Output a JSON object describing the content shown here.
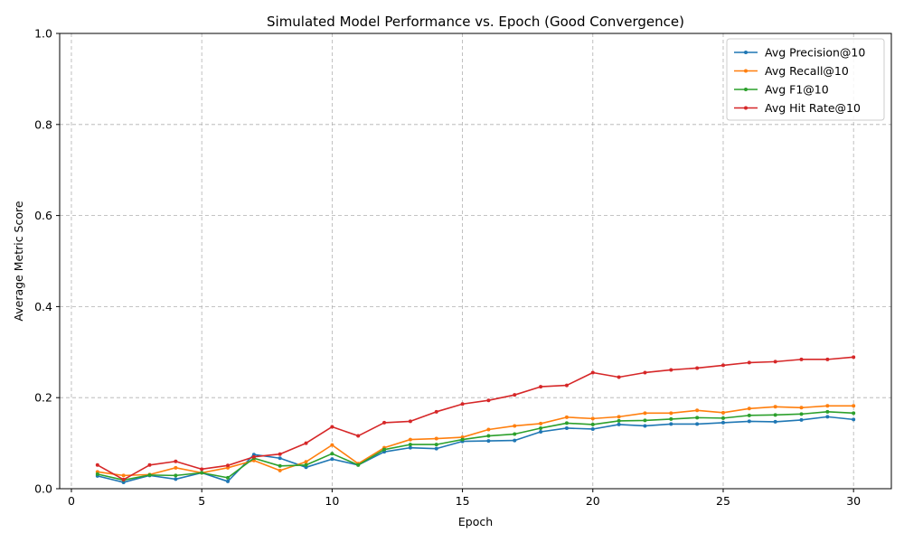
{
  "chart_data": {
    "type": "line",
    "title": "Simulated Model Performance vs. Epoch (Good Convergence)",
    "xlabel": "Epoch",
    "ylabel": "Average Metric Score",
    "xlim": [
      -0.45,
      31.45
    ],
    "ylim": [
      0,
      1.0
    ],
    "x_ticks": [
      0,
      5,
      10,
      15,
      20,
      25,
      30
    ],
    "y_ticks": [
      0.0,
      0.2,
      0.4,
      0.6,
      0.8,
      1.0
    ],
    "x_tick_labels": [
      "0",
      "5",
      "10",
      "15",
      "20",
      "25",
      "30"
    ],
    "y_tick_labels": [
      "0.0",
      "0.2",
      "0.4",
      "0.6",
      "0.8",
      "1.0"
    ],
    "grid": true,
    "legend_position": "top-right",
    "x": [
      1,
      2,
      3,
      4,
      5,
      6,
      7,
      8,
      9,
      10,
      11,
      12,
      13,
      14,
      15,
      16,
      17,
      18,
      19,
      20,
      21,
      22,
      23,
      24,
      25,
      26,
      27,
      28,
      29,
      30
    ],
    "series": [
      {
        "name": "Avg Precision@10",
        "color": "#1f77b4",
        "values": [
          0.028,
          0.014,
          0.029,
          0.021,
          0.035,
          0.016,
          0.075,
          0.067,
          0.047,
          0.065,
          0.052,
          0.081,
          0.09,
          0.088,
          0.104,
          0.105,
          0.106,
          0.125,
          0.133,
          0.131,
          0.141,
          0.138,
          0.142,
          0.142,
          0.145,
          0.148,
          0.147,
          0.151,
          0.158,
          0.152
        ]
      },
      {
        "name": "Avg Recall@10",
        "color": "#ff7f0e",
        "values": [
          0.037,
          0.029,
          0.031,
          0.046,
          0.035,
          0.046,
          0.062,
          0.04,
          0.059,
          0.096,
          0.055,
          0.09,
          0.108,
          0.11,
          0.113,
          0.13,
          0.138,
          0.143,
          0.157,
          0.154,
          0.158,
          0.166,
          0.166,
          0.172,
          0.167,
          0.176,
          0.18,
          0.178,
          0.182,
          0.182
        ]
      },
      {
        "name": "Avg F1@10",
        "color": "#2ca02c",
        "values": [
          0.032,
          0.019,
          0.03,
          0.029,
          0.035,
          0.024,
          0.067,
          0.05,
          0.052,
          0.077,
          0.052,
          0.086,
          0.097,
          0.097,
          0.108,
          0.116,
          0.12,
          0.133,
          0.144,
          0.141,
          0.149,
          0.15,
          0.153,
          0.156,
          0.155,
          0.161,
          0.162,
          0.164,
          0.169,
          0.166
        ]
      },
      {
        "name": "Avg Hit Rate@10",
        "color": "#d62728",
        "values": [
          0.052,
          0.02,
          0.052,
          0.06,
          0.043,
          0.051,
          0.07,
          0.076,
          0.1,
          0.136,
          0.116,
          0.145,
          0.148,
          0.169,
          0.186,
          0.194,
          0.206,
          0.224,
          0.227,
          0.255,
          0.245,
          0.255,
          0.261,
          0.265,
          0.271,
          0.277,
          0.279,
          0.284,
          0.284,
          0.289
        ]
      }
    ]
  }
}
